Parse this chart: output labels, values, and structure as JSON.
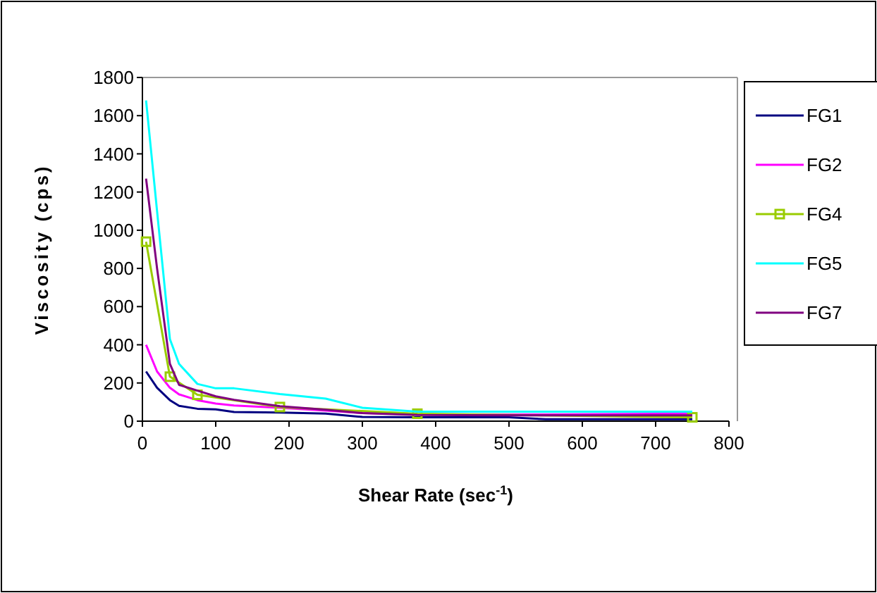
{
  "chart_data": {
    "type": "line",
    "xlabel": "Shear Rate (sec$^{-1}$)",
    "ylabel": "Viscosity (cps)",
    "x": [
      5,
      20,
      37.5,
      50,
      75,
      100,
      125,
      187.5,
      250,
      300,
      375,
      500,
      550,
      750
    ],
    "series": [
      {
        "name": "FG1",
        "color": "#000080",
        "marker": "none",
        "values": [
          260,
          175,
          110,
          80,
          65,
          62,
          48,
          45,
          40,
          22,
          20,
          20,
          10,
          10
        ]
      },
      {
        "name": "FG2",
        "color": "#ff00ff",
        "marker": "none",
        "values": [
          400,
          260,
          175,
          140,
          110,
          92,
          82,
          70,
          55,
          42,
          36,
          35,
          35,
          40
        ]
      },
      {
        "name": "FG4",
        "color": "#99cc00",
        "marker": "square",
        "x": [
          5,
          37.5,
          75,
          187.5,
          375,
          750
        ],
        "values": [
          940,
          233,
          138,
          74,
          39,
          20
        ]
      },
      {
        "name": "FG5",
        "color": "#00ffff",
        "marker": "none",
        "values": [
          1680,
          1100,
          430,
          300,
          195,
          172,
          172,
          142,
          118,
          70,
          50,
          50,
          50,
          50
        ]
      },
      {
        "name": "FG7",
        "color": "#800080",
        "marker": "none",
        "values": [
          1270,
          800,
          300,
          190,
          160,
          130,
          112,
          78,
          60,
          42,
          32,
          30,
          30,
          30
        ]
      }
    ],
    "xlim": [
      0,
      800
    ],
    "xticks": [
      0,
      100,
      200,
      300,
      400,
      500,
      600,
      700,
      800
    ],
    "ylim": [
      0,
      1800
    ],
    "yticks": [
      0,
      200,
      400,
      600,
      800,
      1000,
      1200,
      1400,
      1600,
      1800
    ],
    "grid": false,
    "legend": "right"
  }
}
